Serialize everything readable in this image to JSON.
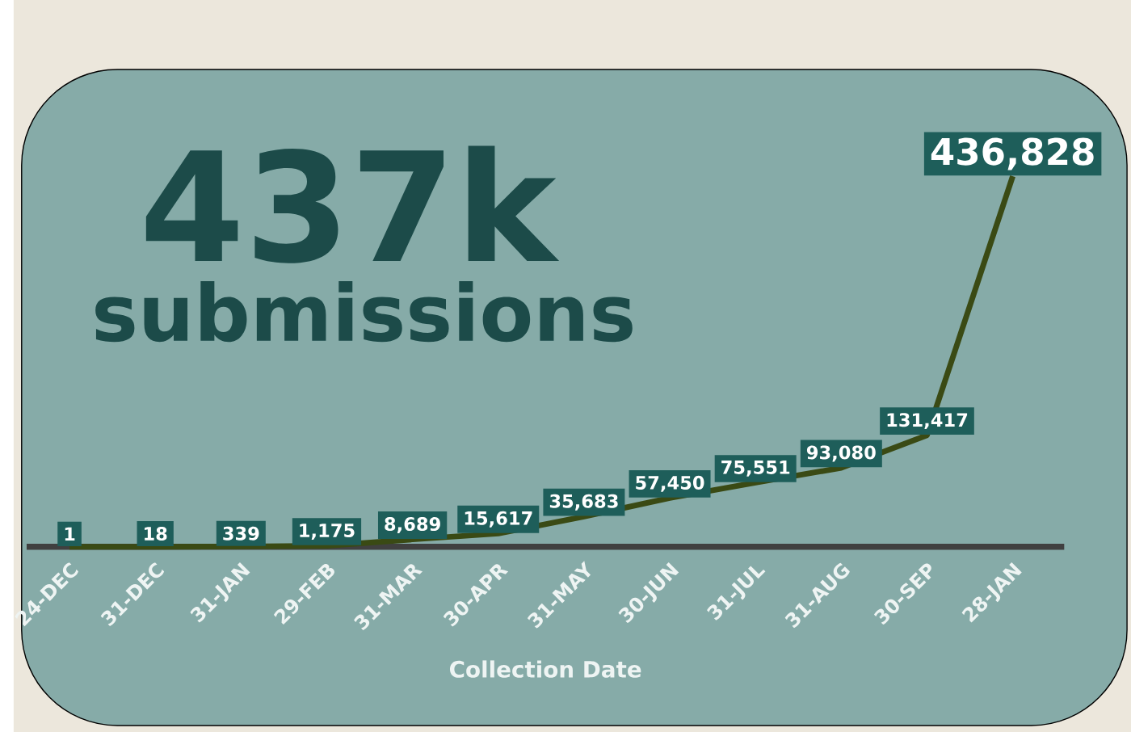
{
  "chart_data": {
    "type": "line",
    "title": "437k",
    "subtitle": "submissions",
    "xlabel": "Collection Date",
    "categories": [
      "24-DEC",
      "31-DEC",
      "31-JAN",
      "29-FEB",
      "31-MAR",
      "30-APR",
      "31-MAY",
      "30-JUN",
      "31-JUL",
      "31-AUG",
      "30-SEP",
      "28-JAN"
    ],
    "values": [
      1,
      18,
      339,
      1175,
      8689,
      15617,
      35683,
      57450,
      75551,
      93080,
      131417,
      436828
    ],
    "value_labels": [
      "1",
      "18",
      "339",
      "1,175",
      "8,689",
      "15,617",
      "35,683",
      "57,450",
      "75,551",
      "93,080",
      "131,417",
      "436,828"
    ],
    "color": "#3a4a14",
    "marker": "none",
    "line_style": "solid"
  }
}
